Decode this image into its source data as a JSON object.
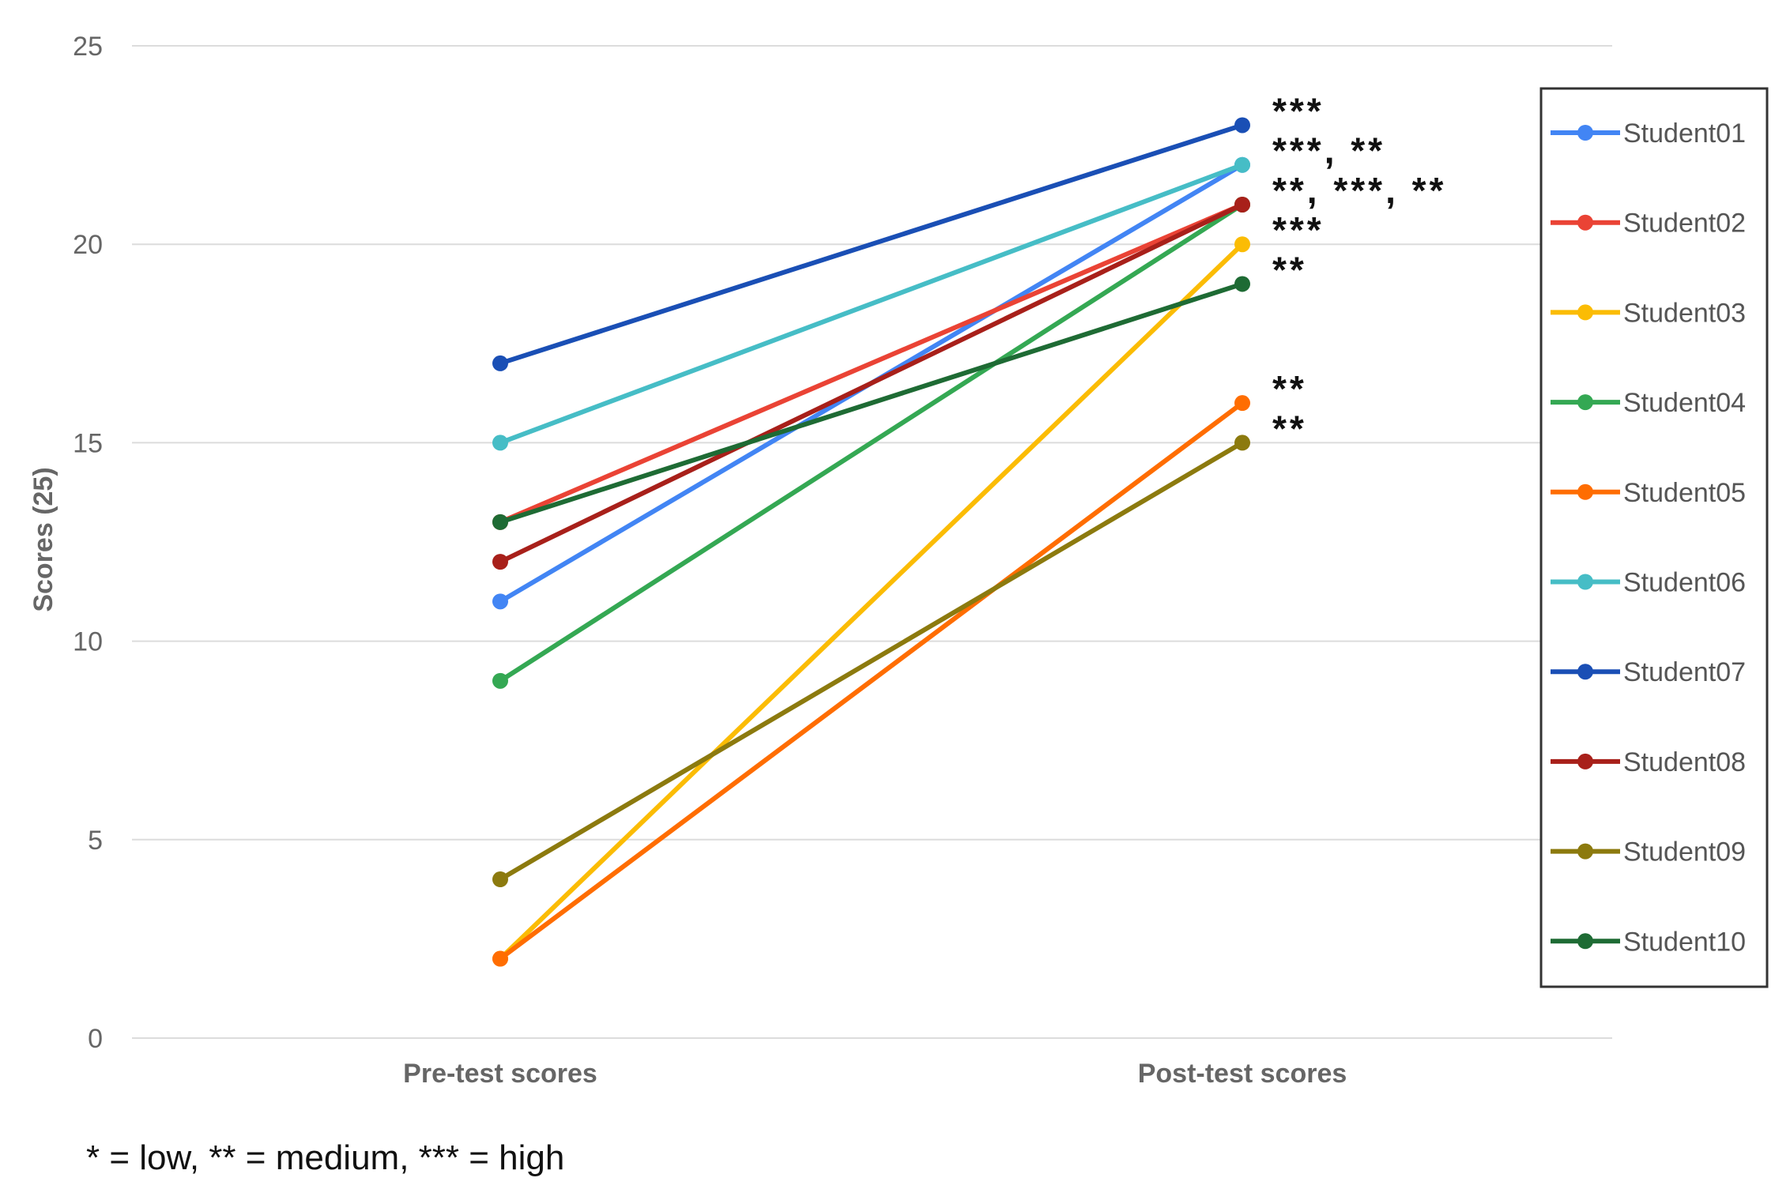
{
  "chart_data": {
    "type": "line",
    "title": "",
    "xlabel": "",
    "ylabel": "Scores (25)",
    "categories": [
      "Pre-test scores",
      "Post-test scores"
    ],
    "ylim": [
      0,
      25
    ],
    "yticks": [
      0,
      5,
      10,
      15,
      20,
      25
    ],
    "grid": true,
    "legend_placement": "right",
    "series": [
      {
        "name": "Student01",
        "values": [
          11,
          22
        ],
        "color": "#4285f4"
      },
      {
        "name": "Student02",
        "values": [
          13,
          21
        ],
        "color": "#ea4335"
      },
      {
        "name": "Student03",
        "values": [
          2,
          20
        ],
        "color": "#fbbc04"
      },
      {
        "name": "Student04",
        "values": [
          9,
          21
        ],
        "color": "#34a853"
      },
      {
        "name": "Student05",
        "values": [
          2,
          16
        ],
        "color": "#ff6d01"
      },
      {
        "name": "Student06",
        "values": [
          15,
          22
        ],
        "color": "#46bdc6"
      },
      {
        "name": "Student07",
        "values": [
          17,
          23
        ],
        "color": "#1a4fb5"
      },
      {
        "name": "Student08",
        "values": [
          12,
          21
        ],
        "color": "#a8201a"
      },
      {
        "name": "Student09",
        "values": [
          4,
          15
        ],
        "color": "#8c7a0e"
      },
      {
        "name": "Student10",
        "values": [
          13,
          19
        ],
        "color": "#1e6b34"
      }
    ],
    "annotations": [
      {
        "y": 23,
        "text": "***"
      },
      {
        "y": 22,
        "text": "***, **"
      },
      {
        "y": 21,
        "text": "**, ***, **"
      },
      {
        "y": 20,
        "text": "***"
      },
      {
        "y": 19,
        "text": "**"
      },
      {
        "y": 16,
        "text": "**"
      },
      {
        "y": 15,
        "text": "**"
      }
    ],
    "footnote": "* = low, ** = medium, *** = high"
  }
}
